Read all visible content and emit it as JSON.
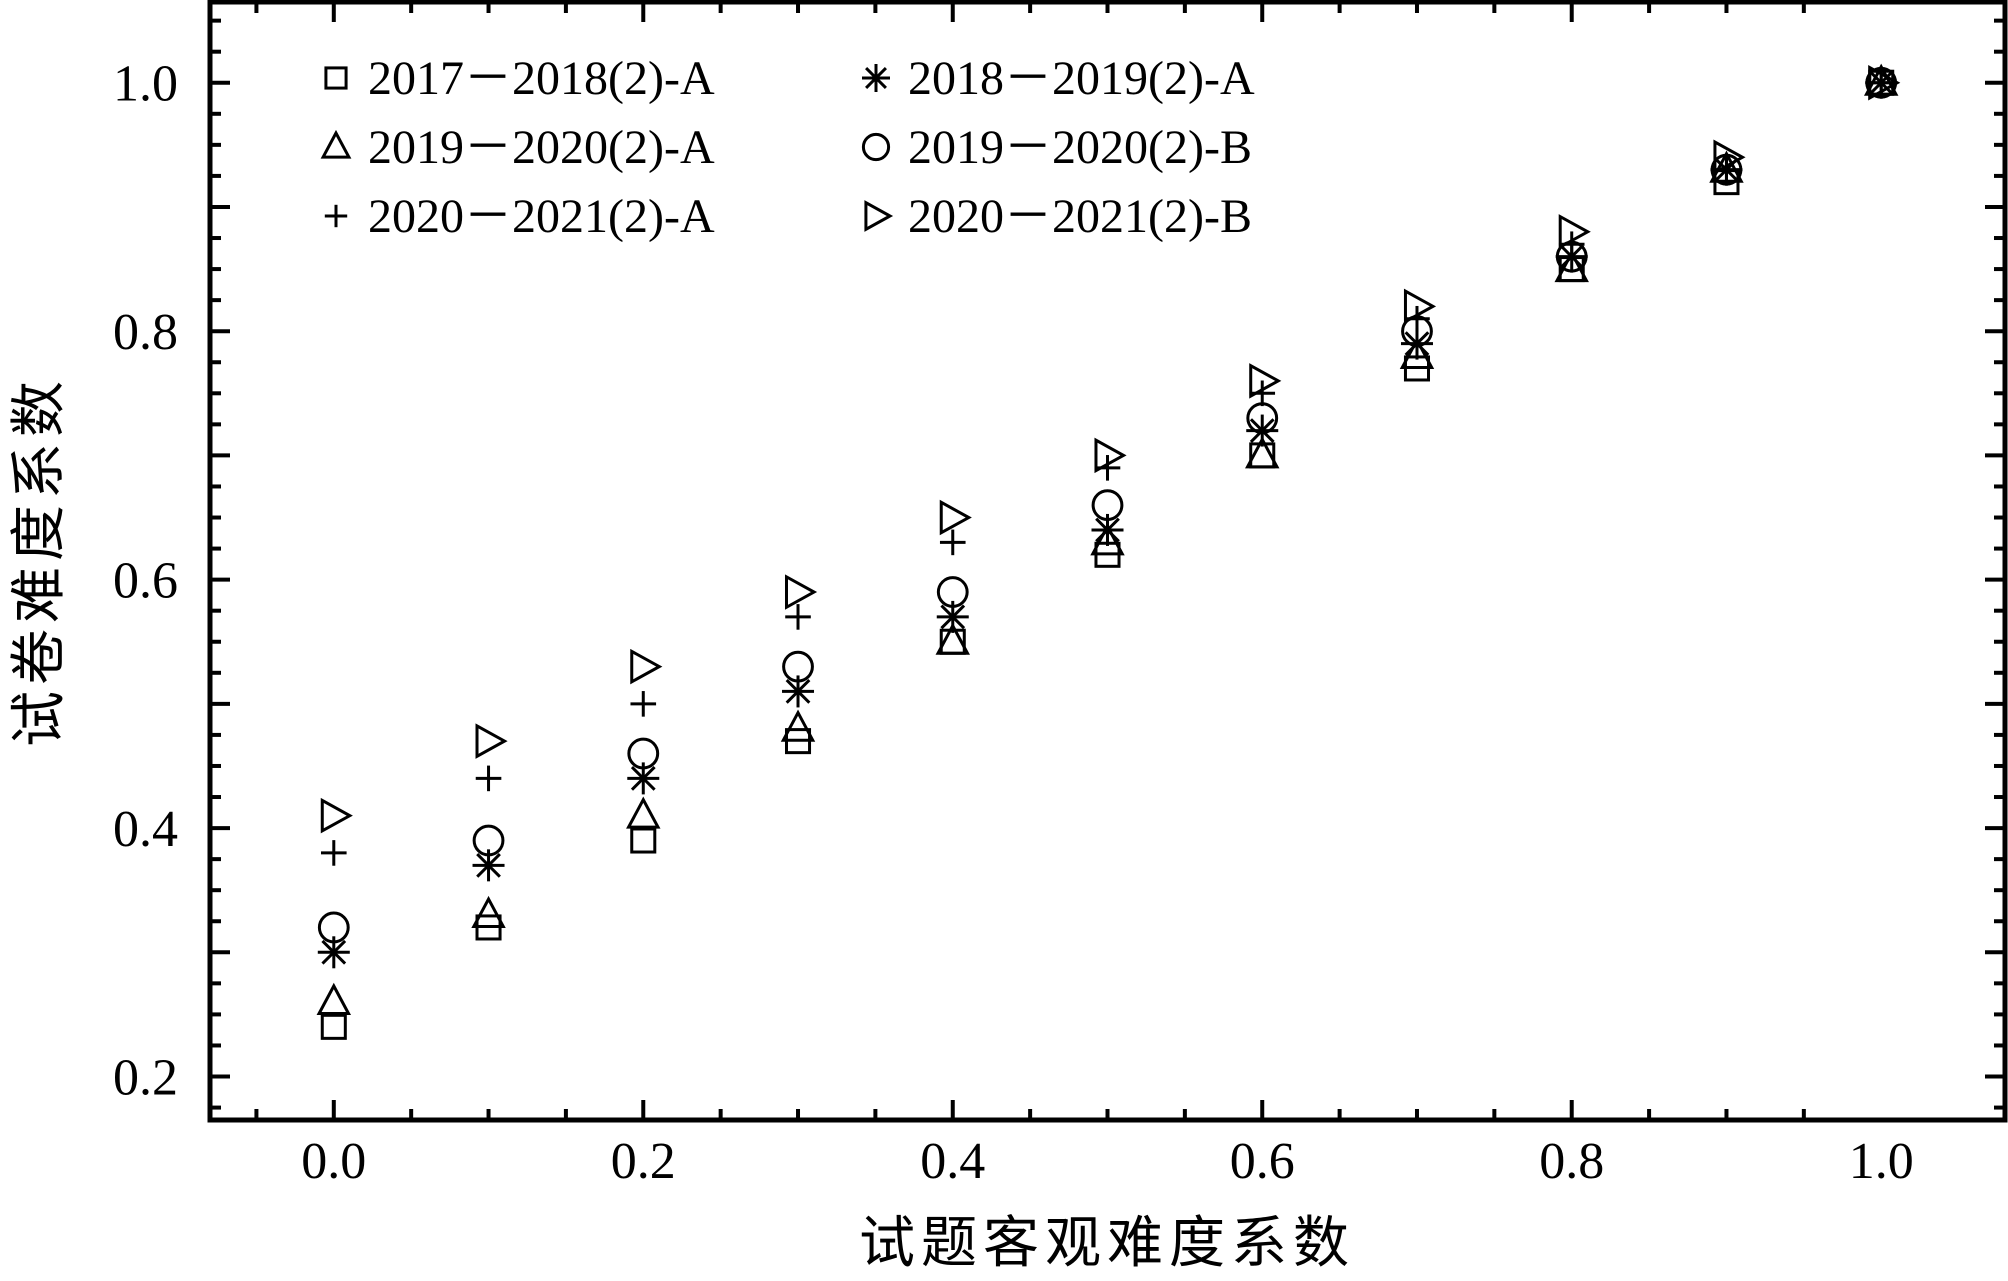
{
  "chart_data": {
    "type": "scatter",
    "xlabel": "试题客观难度系数",
    "ylabel": "试卷难度系数",
    "xlim": [
      -0.08,
      1.08
    ],
    "ylim": [
      0.165,
      1.065
    ],
    "x_ticks": [
      "0.0",
      "0.2",
      "0.4",
      "0.6",
      "0.8",
      "1.0"
    ],
    "y_ticks": [
      "0.2",
      "0.4",
      "0.6",
      "0.8",
      "1.0"
    ],
    "grid": false,
    "legend_position": "top-left",
    "x": [
      0.0,
      0.1,
      0.2,
      0.3,
      0.4,
      0.5,
      0.6,
      0.7,
      0.8,
      0.9,
      1.0
    ],
    "series": [
      {
        "name": "2017－2018(2)-A",
        "marker": "square",
        "values": [
          0.24,
          0.32,
          0.39,
          0.47,
          0.55,
          0.62,
          0.7,
          0.77,
          0.85,
          0.92,
          1.0
        ]
      },
      {
        "name": "2018－2019(2)-A",
        "marker": "star",
        "values": [
          0.3,
          0.37,
          0.44,
          0.51,
          0.57,
          0.64,
          0.72,
          0.79,
          0.86,
          0.93,
          1.0
        ]
      },
      {
        "name": "2019－2020(2)-A",
        "marker": "triangle-up",
        "values": [
          0.26,
          0.33,
          0.41,
          0.48,
          0.55,
          0.63,
          0.7,
          0.78,
          0.85,
          0.93,
          1.0
        ]
      },
      {
        "name": "2019－2020(2)-B",
        "marker": "circle",
        "values": [
          0.32,
          0.39,
          0.46,
          0.53,
          0.59,
          0.66,
          0.73,
          0.8,
          0.86,
          0.93,
          1.0
        ]
      },
      {
        "name": "2020－2021(2)-A",
        "marker": "plus",
        "values": [
          0.38,
          0.44,
          0.5,
          0.57,
          0.63,
          0.69,
          0.75,
          0.81,
          0.87,
          0.93,
          1.0
        ]
      },
      {
        "name": "2020－2021(2)-B",
        "marker": "triangle-right",
        "values": [
          0.41,
          0.47,
          0.53,
          0.59,
          0.65,
          0.7,
          0.76,
          0.82,
          0.88,
          0.94,
          1.0
        ]
      }
    ]
  }
}
